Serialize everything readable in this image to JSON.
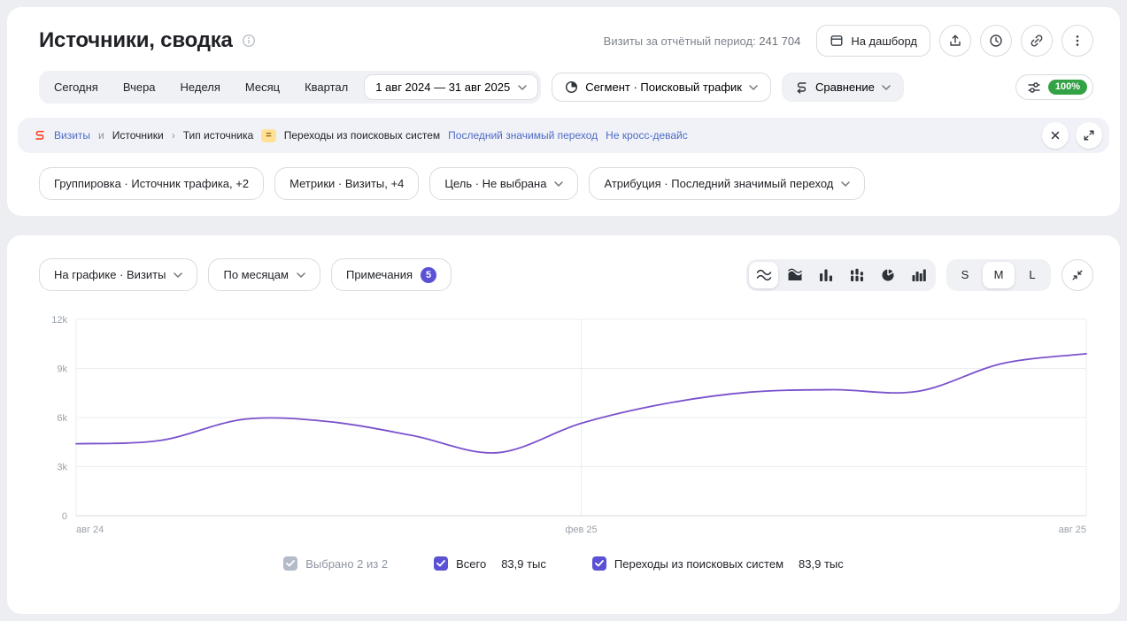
{
  "header": {
    "title": "Источники, сводка",
    "visits_label": "Визиты за отчётный период:",
    "visits_value": "241 704",
    "dashboard_button": "На дашборд"
  },
  "period_bar": {
    "tabs": [
      "Сегодня",
      "Вчера",
      "Неделя",
      "Месяц",
      "Квартал"
    ],
    "date_range": "1 авг 2024 — 31 авг 2025",
    "segment": "Сегмент · Поисковый трафик",
    "comparison": "Сравнение",
    "sampling": "100%"
  },
  "filter_bar": {
    "metric_link": "Визиты",
    "conjunction": "и",
    "path_1": "Источники",
    "path_separator": "›",
    "path_2": "Тип источника",
    "operator": "=",
    "value": "Переходы из поисковых систем",
    "attribution_link": "Последний значимый переход",
    "device_link": "Не кросс-девайс"
  },
  "settings_bar": {
    "grouping": "Группировка · Источник трафика, +2",
    "metrics": "Метрики · Визиты, +4",
    "goal": "Цель · Не выбрана",
    "attribution": "Атрибуция · Последний значимый переход"
  },
  "chart_controls": {
    "on_chart": "На графике · Визиты",
    "granularity": "По месяцам",
    "notes_label": "Примечания",
    "notes_count": "5",
    "sizes": [
      "S",
      "M",
      "L"
    ],
    "selected_size": "M"
  },
  "legend": {
    "selected_summary": "Выбрано 2 из 2",
    "items": [
      {
        "label": "Всего",
        "value": "83,9 тыс"
      },
      {
        "label": "Переходы из поисковых систем",
        "value": "83,9 тыс"
      }
    ]
  },
  "icons": {
    "info-icon": "circled-i",
    "dashboard-icon": "browser-window",
    "export-icon": "arrow-up-from-tray",
    "clock-icon": "clock",
    "link-icon": "chain-link",
    "kebab-icon": "vertical-dots",
    "chevron-down-icon": "chevron-down",
    "segment-pie-icon": "quarter-filled-circle",
    "comparison-icon": "s-curve-arrow",
    "metrica-visits-icon": "red-s-curve",
    "sliders-icon": "filter-sliders",
    "close-icon": "x-cross",
    "expand-icon": "diagonal-arrows-out",
    "collapse-icon": "diagonal-arrows-in",
    "chart-type-icons": [
      "curves",
      "stacked-areas",
      "bars",
      "stacked-bars",
      "pie",
      "columns"
    ],
    "checkbox-check": "checkmark"
  },
  "chart_data": {
    "type": "line",
    "x": [
      "авг 24",
      "сен 24",
      "окт 24",
      "ноя 24",
      "дек 24",
      "янв 25",
      "фев 25",
      "мар 25",
      "апр 25",
      "май 25",
      "июн 25",
      "июл 25",
      "авг 25"
    ],
    "series": [
      {
        "name": "Переходы из поисковых систем",
        "color": "#7a52cc",
        "values": [
          4400,
          4600,
          5900,
          5750,
          4900,
          3850,
          5650,
          6850,
          7550,
          7700,
          7600,
          9300,
          9900
        ]
      }
    ],
    "total": "83,9 тыс",
    "ylim": [
      0,
      12000
    ],
    "yticks": [
      0,
      3000,
      6000,
      9000,
      12000
    ],
    "ytick_labels": [
      "0",
      "3k",
      "6k",
      "9k",
      "12k"
    ],
    "xticks_visible": [
      "авг 24",
      "фев 25",
      "авг 25"
    ],
    "grid": true,
    "legend_position": "bottom"
  }
}
